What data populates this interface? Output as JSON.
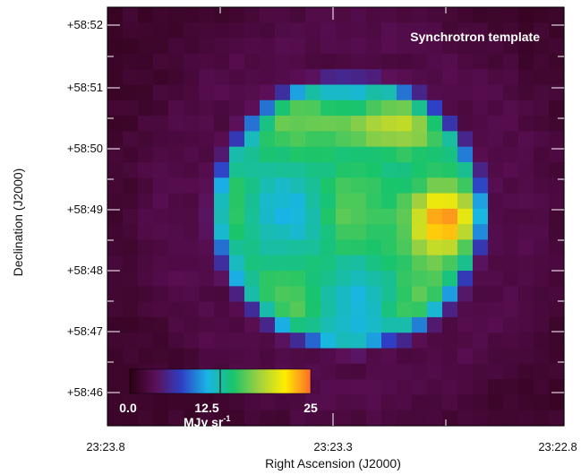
{
  "figure": {
    "title": "Synchrotron template",
    "x_axis_label": "Right Ascension (J2000)",
    "y_axis_label": "Declination (J2000)",
    "x_ticks": [
      "23:23.8",
      "23:23.3",
      "23:22.8"
    ],
    "y_ticks": [
      "+58:52",
      "+58:51",
      "+58:50",
      "+58:49",
      "+58:48",
      "+58:47",
      "+58:46"
    ],
    "colorbar": {
      "tick_labels": [
        "0.0",
        "12.5",
        "25"
      ],
      "unit": "MJy sr",
      "unit_exponent": "-1",
      "min": 0.0,
      "max": 25,
      "colors": [
        "#2a0010",
        "#5c0f57",
        "#2e3fc4",
        "#19b5e6",
        "#19c46b",
        "#a0d040",
        "#ffee00",
        "#ff6a2a"
      ]
    }
  },
  "chart_data": {
    "type": "heatmap",
    "title": "Synchrotron template",
    "xlabel": "Right Ascension (J2000)",
    "ylabel": "Declination (J2000)",
    "x_ticks": [
      "23:23.8",
      "23:23.3",
      "23:22.8"
    ],
    "y_ticks": [
      "+58:52",
      "+58:51",
      "+58:50",
      "+58:49",
      "+58:48",
      "+58:47",
      "+58:46"
    ],
    "value_range": [
      0,
      25
    ],
    "unit": "MJy sr^-1",
    "features": {
      "shell_brightness": 12.5,
      "interior_brightness": 12,
      "hotspot_peak": 24,
      "north_arc_peak": 18,
      "background": 1
    }
  }
}
